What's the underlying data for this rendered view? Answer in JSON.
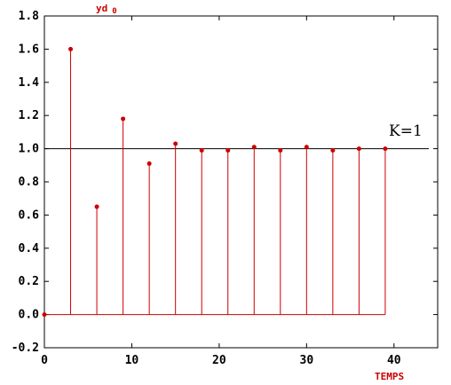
{
  "chart_data": {
    "type": "stem",
    "ylabel": "yd",
    "ylabel_sub": "0",
    "xlabel": "TEMPS",
    "xlim": [
      0,
      45
    ],
    "ylim": [
      -0.2,
      1.8
    ],
    "x_ticks": [
      "0",
      "10",
      "20",
      "30",
      "40"
    ],
    "y_ticks": [
      "-0.2",
      "0.0",
      "0.2",
      "0.4",
      "0.6",
      "0.8",
      "1.0",
      "1.2",
      "1.4",
      "1.6",
      "1.8"
    ],
    "reference_line": {
      "y": 1.0,
      "label": "K=1"
    },
    "series": [
      {
        "x": [
          0,
          3,
          6,
          9,
          12,
          15,
          18,
          21,
          24,
          27,
          30,
          33,
          36,
          39
        ],
        "y": [
          0.0,
          1.6,
          0.65,
          1.18,
          0.91,
          1.03,
          0.99,
          0.99,
          1.01,
          0.99,
          1.01,
          0.99,
          1.0,
          1.0
        ]
      }
    ],
    "grid": false,
    "colors": {
      "stem": "#cc0000",
      "axis": "#000000",
      "label": "#cc0000"
    }
  }
}
